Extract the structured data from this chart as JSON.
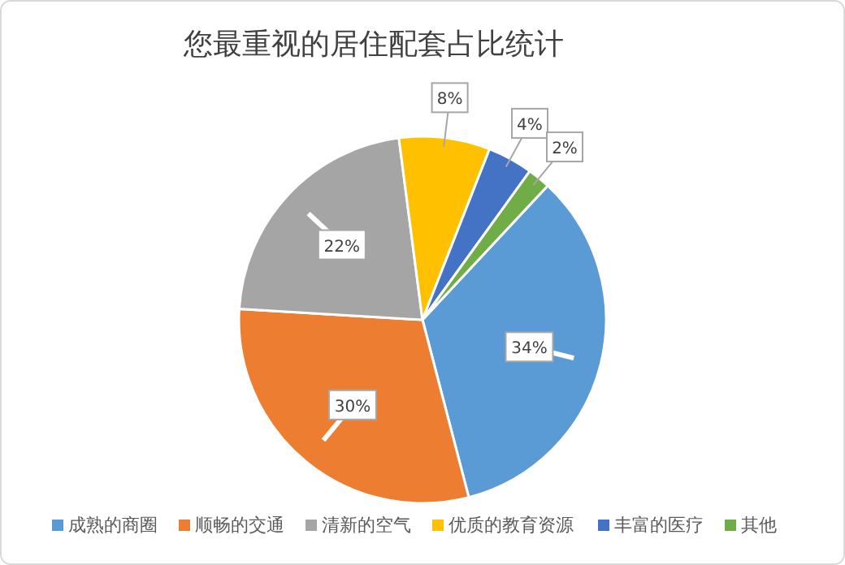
{
  "chart_data": {
    "type": "pie",
    "title": "您最重视的居住配套占比统计",
    "categories": [
      "成熟的商圈",
      "顺畅的交通",
      "清新的空气",
      "优质的教育资源",
      "丰富的医疗",
      "其他"
    ],
    "values": [
      34,
      30,
      22,
      8,
      4,
      2
    ],
    "colors": [
      "#5b9bd5",
      "#ed7d31",
      "#a5a5a5",
      "#ffc000",
      "#4472c4",
      "#70ad47"
    ],
    "value_labels": [
      "34%",
      "30%",
      "22%",
      "8%",
      "4%",
      "2%"
    ],
    "legend": "bottom"
  }
}
